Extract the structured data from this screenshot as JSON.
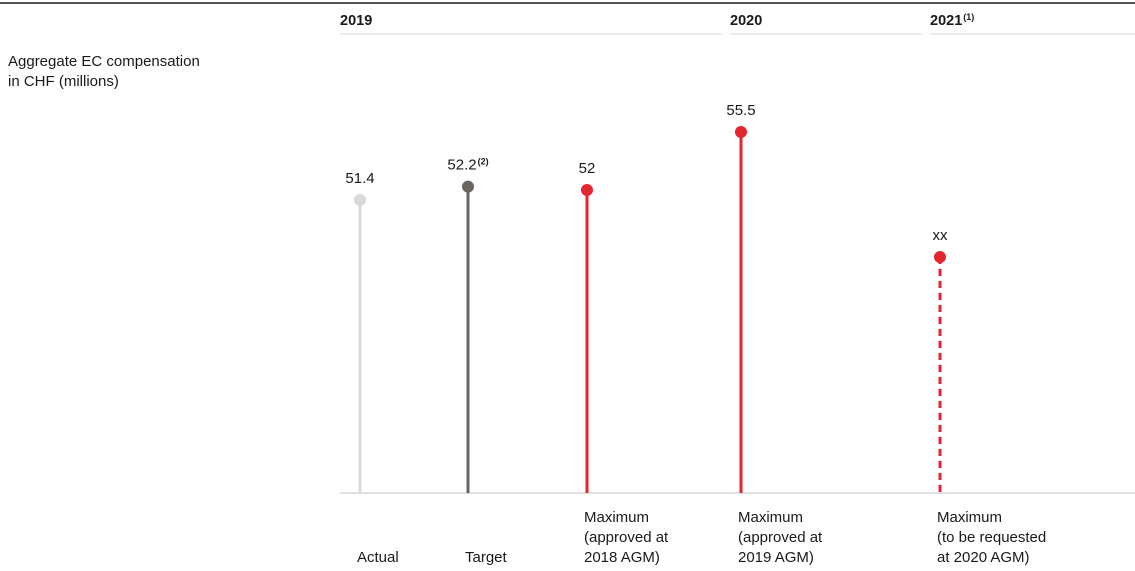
{
  "chart_data": {
    "type": "lollipop",
    "y_label_lines": [
      "Aggregate EC compensation",
      "in CHF (millions)"
    ],
    "groups": [
      {
        "label": "2019",
        "superscript": ""
      },
      {
        "label": "2020",
        "superscript": ""
      },
      {
        "label": "2021",
        "superscript": "(1)"
      }
    ],
    "points": [
      {
        "group": "2019",
        "value": 51.4,
        "label": "51.4",
        "label_sup": "",
        "category_lines": [
          "Actual"
        ],
        "color": "#d9d9d9",
        "style": "solid"
      },
      {
        "group": "2019",
        "value": 52.2,
        "label": "52.2",
        "label_sup": "(2)",
        "category_lines": [
          "Target"
        ],
        "color": "#696660",
        "style": "solid"
      },
      {
        "group": "2019",
        "value": 52,
        "label": "52",
        "label_sup": "",
        "category_lines": [
          "Maximum",
          "(approved at",
          "2018 AGM)"
        ],
        "color": "#e3262f",
        "style": "solid"
      },
      {
        "group": "2020",
        "value": 55.5,
        "label": "55.5",
        "label_sup": "",
        "category_lines": [
          "Maximum",
          "(approved at",
          "2019 AGM)"
        ],
        "color": "#e3262f",
        "style": "solid"
      },
      {
        "group": "2021",
        "value": null,
        "label": "xx",
        "label_sup": "",
        "category_lines": [
          "Maximum",
          "(to be requested",
          "at 2020 AGM)"
        ],
        "color": "#e3262f",
        "style": "dashed"
      }
    ]
  }
}
